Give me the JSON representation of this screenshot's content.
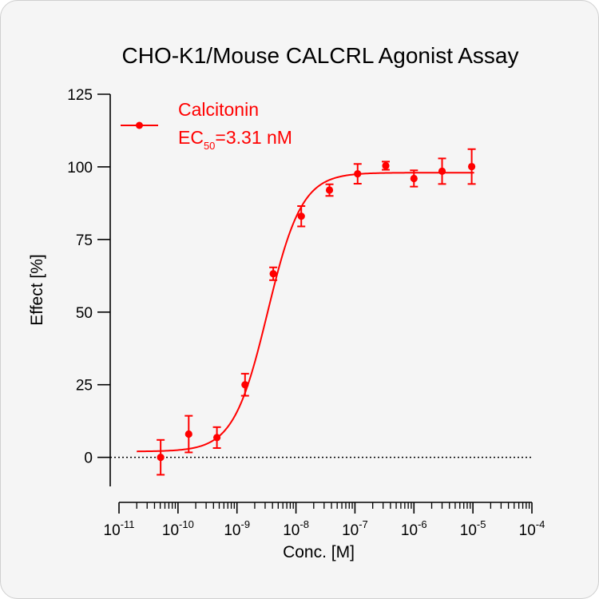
{
  "chart_data": {
    "type": "scatter",
    "title": "CHO-K1/Mouse CALCRL Agonist Assay",
    "xlabel": "Conc. [M]",
    "ylabel": "Effect  [%]",
    "x_scale": "log",
    "xlim": [
      1e-11,
      0.0001
    ],
    "ylim": [
      -10,
      125
    ],
    "y_ticks": [
      0,
      25,
      50,
      75,
      100,
      125
    ],
    "x_ticks": [
      {
        "base": "10",
        "exp": "-11",
        "value": 1e-11
      },
      {
        "base": "10",
        "exp": "-10",
        "value": 1e-10
      },
      {
        "base": "10",
        "exp": "-9",
        "value": 1e-09
      },
      {
        "base": "10",
        "exp": "-8",
        "value": 1e-08
      },
      {
        "base": "10",
        "exp": "-7",
        "value": 1e-07
      },
      {
        "base": "10",
        "exp": "-6",
        "value": 1e-06
      },
      {
        "base": "10",
        "exp": "-5",
        "value": 1e-05
      },
      {
        "base": "10",
        "exp": "-4",
        "value": 0.0001
      }
    ],
    "reference_line": {
      "y": 0,
      "style": "dotted"
    },
    "legend_position": "top-left",
    "series": [
      {
        "name": "Calcitonin",
        "ec50_label": "EC",
        "ec50_sub": "50",
        "ec50_value": "=3.31 nM",
        "color": "#ff0000",
        "fit": {
          "model": "4PL",
          "bottom": 2,
          "top": 98,
          "ec50": 3.31e-09,
          "hill": 1.5
        },
        "points": [
          {
            "x": 5.08e-11,
            "y": 0,
            "err": 6
          },
          {
            "x": 1.52e-10,
            "y": 8,
            "err": 6.3
          },
          {
            "x": 4.57e-10,
            "y": 6.8,
            "err": 3.6
          },
          {
            "x": 1.37e-09,
            "y": 25,
            "err": 3.8
          },
          {
            "x": 4.12e-09,
            "y": 63.2,
            "err": 2.2
          },
          {
            "x": 1.23e-08,
            "y": 83,
            "err": 3.5
          },
          {
            "x": 3.7e-08,
            "y": 92,
            "err": 2
          },
          {
            "x": 1.11e-07,
            "y": 97.6,
            "err": 3.4
          },
          {
            "x": 3.33e-07,
            "y": 100.4,
            "err": 1.4
          },
          {
            "x": 1e-06,
            "y": 96,
            "err": 2.8
          },
          {
            "x": 3e-06,
            "y": 98.5,
            "err": 4.4
          },
          {
            "x": 9.53e-06,
            "y": 100.1,
            "err": 6
          }
        ]
      }
    ]
  }
}
